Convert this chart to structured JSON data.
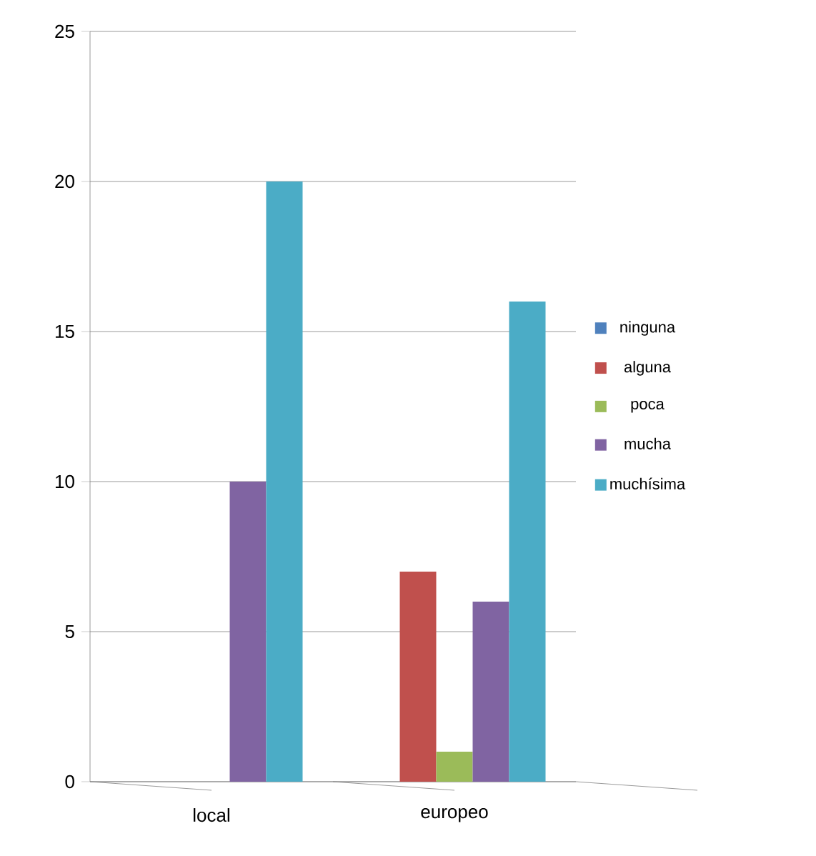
{
  "chart_data": {
    "type": "bar",
    "categories": [
      "local",
      "europeo"
    ],
    "series": [
      {
        "name": "ninguna",
        "color": "#4f81bd",
        "values": [
          0,
          0
        ]
      },
      {
        "name": "alguna",
        "color": "#c0504d",
        "values": [
          0,
          7
        ]
      },
      {
        "name": "poca",
        "color": "#9bbb59",
        "values": [
          0,
          1
        ]
      },
      {
        "name": "mucha",
        "color": "#8064a2",
        "values": [
          10,
          6
        ]
      },
      {
        "name": "muchísima",
        "color": "#4bacc6",
        "values": [
          20,
          16
        ]
      }
    ],
    "ylim": [
      0,
      25
    ],
    "yticks": [
      0,
      5,
      10,
      15,
      20,
      25
    ],
    "grid": "y",
    "legend": "right"
  }
}
